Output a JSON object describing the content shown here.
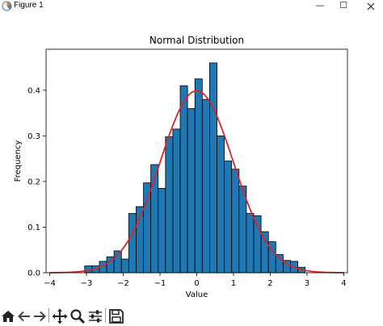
{
  "window": {
    "title": "Figure 1",
    "minimize_glyph": "—",
    "maximize_glyph": "☐"
  },
  "toolbar": {
    "buttons": [
      {
        "icon": "home-icon"
      },
      {
        "icon": "back-arrow-icon"
      },
      {
        "icon": "forward-arrow-icon"
      },
      {
        "icon": "pan-icon"
      },
      {
        "icon": "zoom-icon"
      },
      {
        "icon": "configure-subplots-icon"
      },
      {
        "icon": "save-icon"
      }
    ]
  },
  "chart_data": {
    "type": "bar",
    "title": "Normal Distribution",
    "xlabel": "Value",
    "ylabel": "Frequency",
    "xlim": [
      -4.1,
      4.1
    ],
    "ylim": [
      0,
      0.49
    ],
    "xticks": [
      -4,
      -3,
      -2,
      -1,
      0,
      1,
      2,
      3,
      4
    ],
    "xtick_labels": [
      "−4",
      "−3",
      "−2",
      "−1",
      "0",
      "1",
      "2",
      "3",
      "4"
    ],
    "yticks": [
      0.0,
      0.1,
      0.2,
      0.3,
      0.4
    ],
    "ytick_labels": [
      "0.0",
      "0.1",
      "0.2",
      "0.3",
      "0.4"
    ],
    "bar_color": "#1f77b4",
    "edge_color": "#000000",
    "curve_color": "#d62728",
    "histogram": {
      "bin_start": -3.05,
      "bin_width": 0.2,
      "values": [
        0.015,
        0.015,
        0.025,
        0.035,
        0.048,
        0.03,
        0.13,
        0.145,
        0.197,
        0.237,
        0.185,
        0.298,
        0.315,
        0.41,
        0.36,
        0.425,
        0.38,
        0.46,
        0.3,
        0.245,
        0.227,
        0.19,
        0.13,
        0.125,
        0.09,
        0.068,
        0.04,
        0.027,
        0.025,
        0.012
      ]
    },
    "curve": {
      "label_free": true,
      "mean": 0,
      "std": 1,
      "x_range": [
        -4,
        4
      ]
    }
  }
}
